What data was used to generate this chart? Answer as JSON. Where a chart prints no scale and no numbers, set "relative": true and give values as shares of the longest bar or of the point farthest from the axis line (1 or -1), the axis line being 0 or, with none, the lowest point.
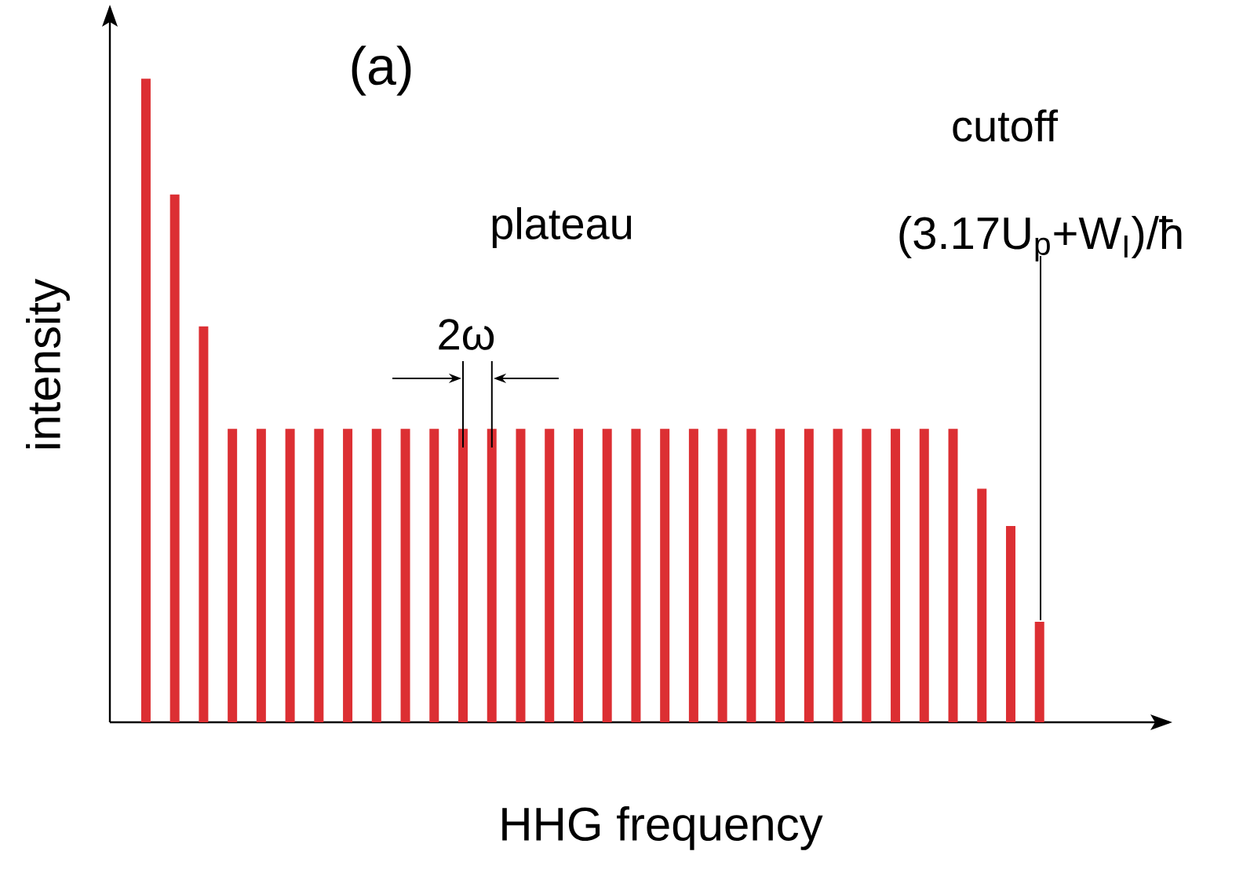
{
  "chart_data": {
    "type": "bar",
    "relative": true,
    "categories": [
      null,
      null,
      null,
      null,
      null,
      null,
      null,
      null,
      null,
      null,
      null,
      null,
      null,
      null,
      null,
      null,
      null,
      null,
      null,
      null,
      null,
      null,
      null,
      null,
      null,
      null,
      null,
      null,
      null,
      null,
      null,
      null
    ],
    "values": [
      1,
      0.82,
      0.615,
      0.456,
      0.456,
      0.456,
      0.456,
      0.456,
      0.456,
      0.456,
      0.456,
      0.456,
      0.456,
      0.456,
      0.456,
      0.456,
      0.456,
      0.456,
      0.456,
      0.456,
      0.456,
      0.456,
      0.456,
      0.456,
      0.456,
      0.456,
      0.456,
      0.456,
      0.456,
      0.363,
      0.305,
      0.156
    ],
    "color": "#dc2f33",
    "xlabel": "HHG frequency",
    "ylabel": "intensity",
    "annotations": [
      "(a)",
      "plateau",
      "cutoff",
      "(3.17U$_{p}$+W$_{I}$)/ħ",
      "2ω"
    ]
  }
}
